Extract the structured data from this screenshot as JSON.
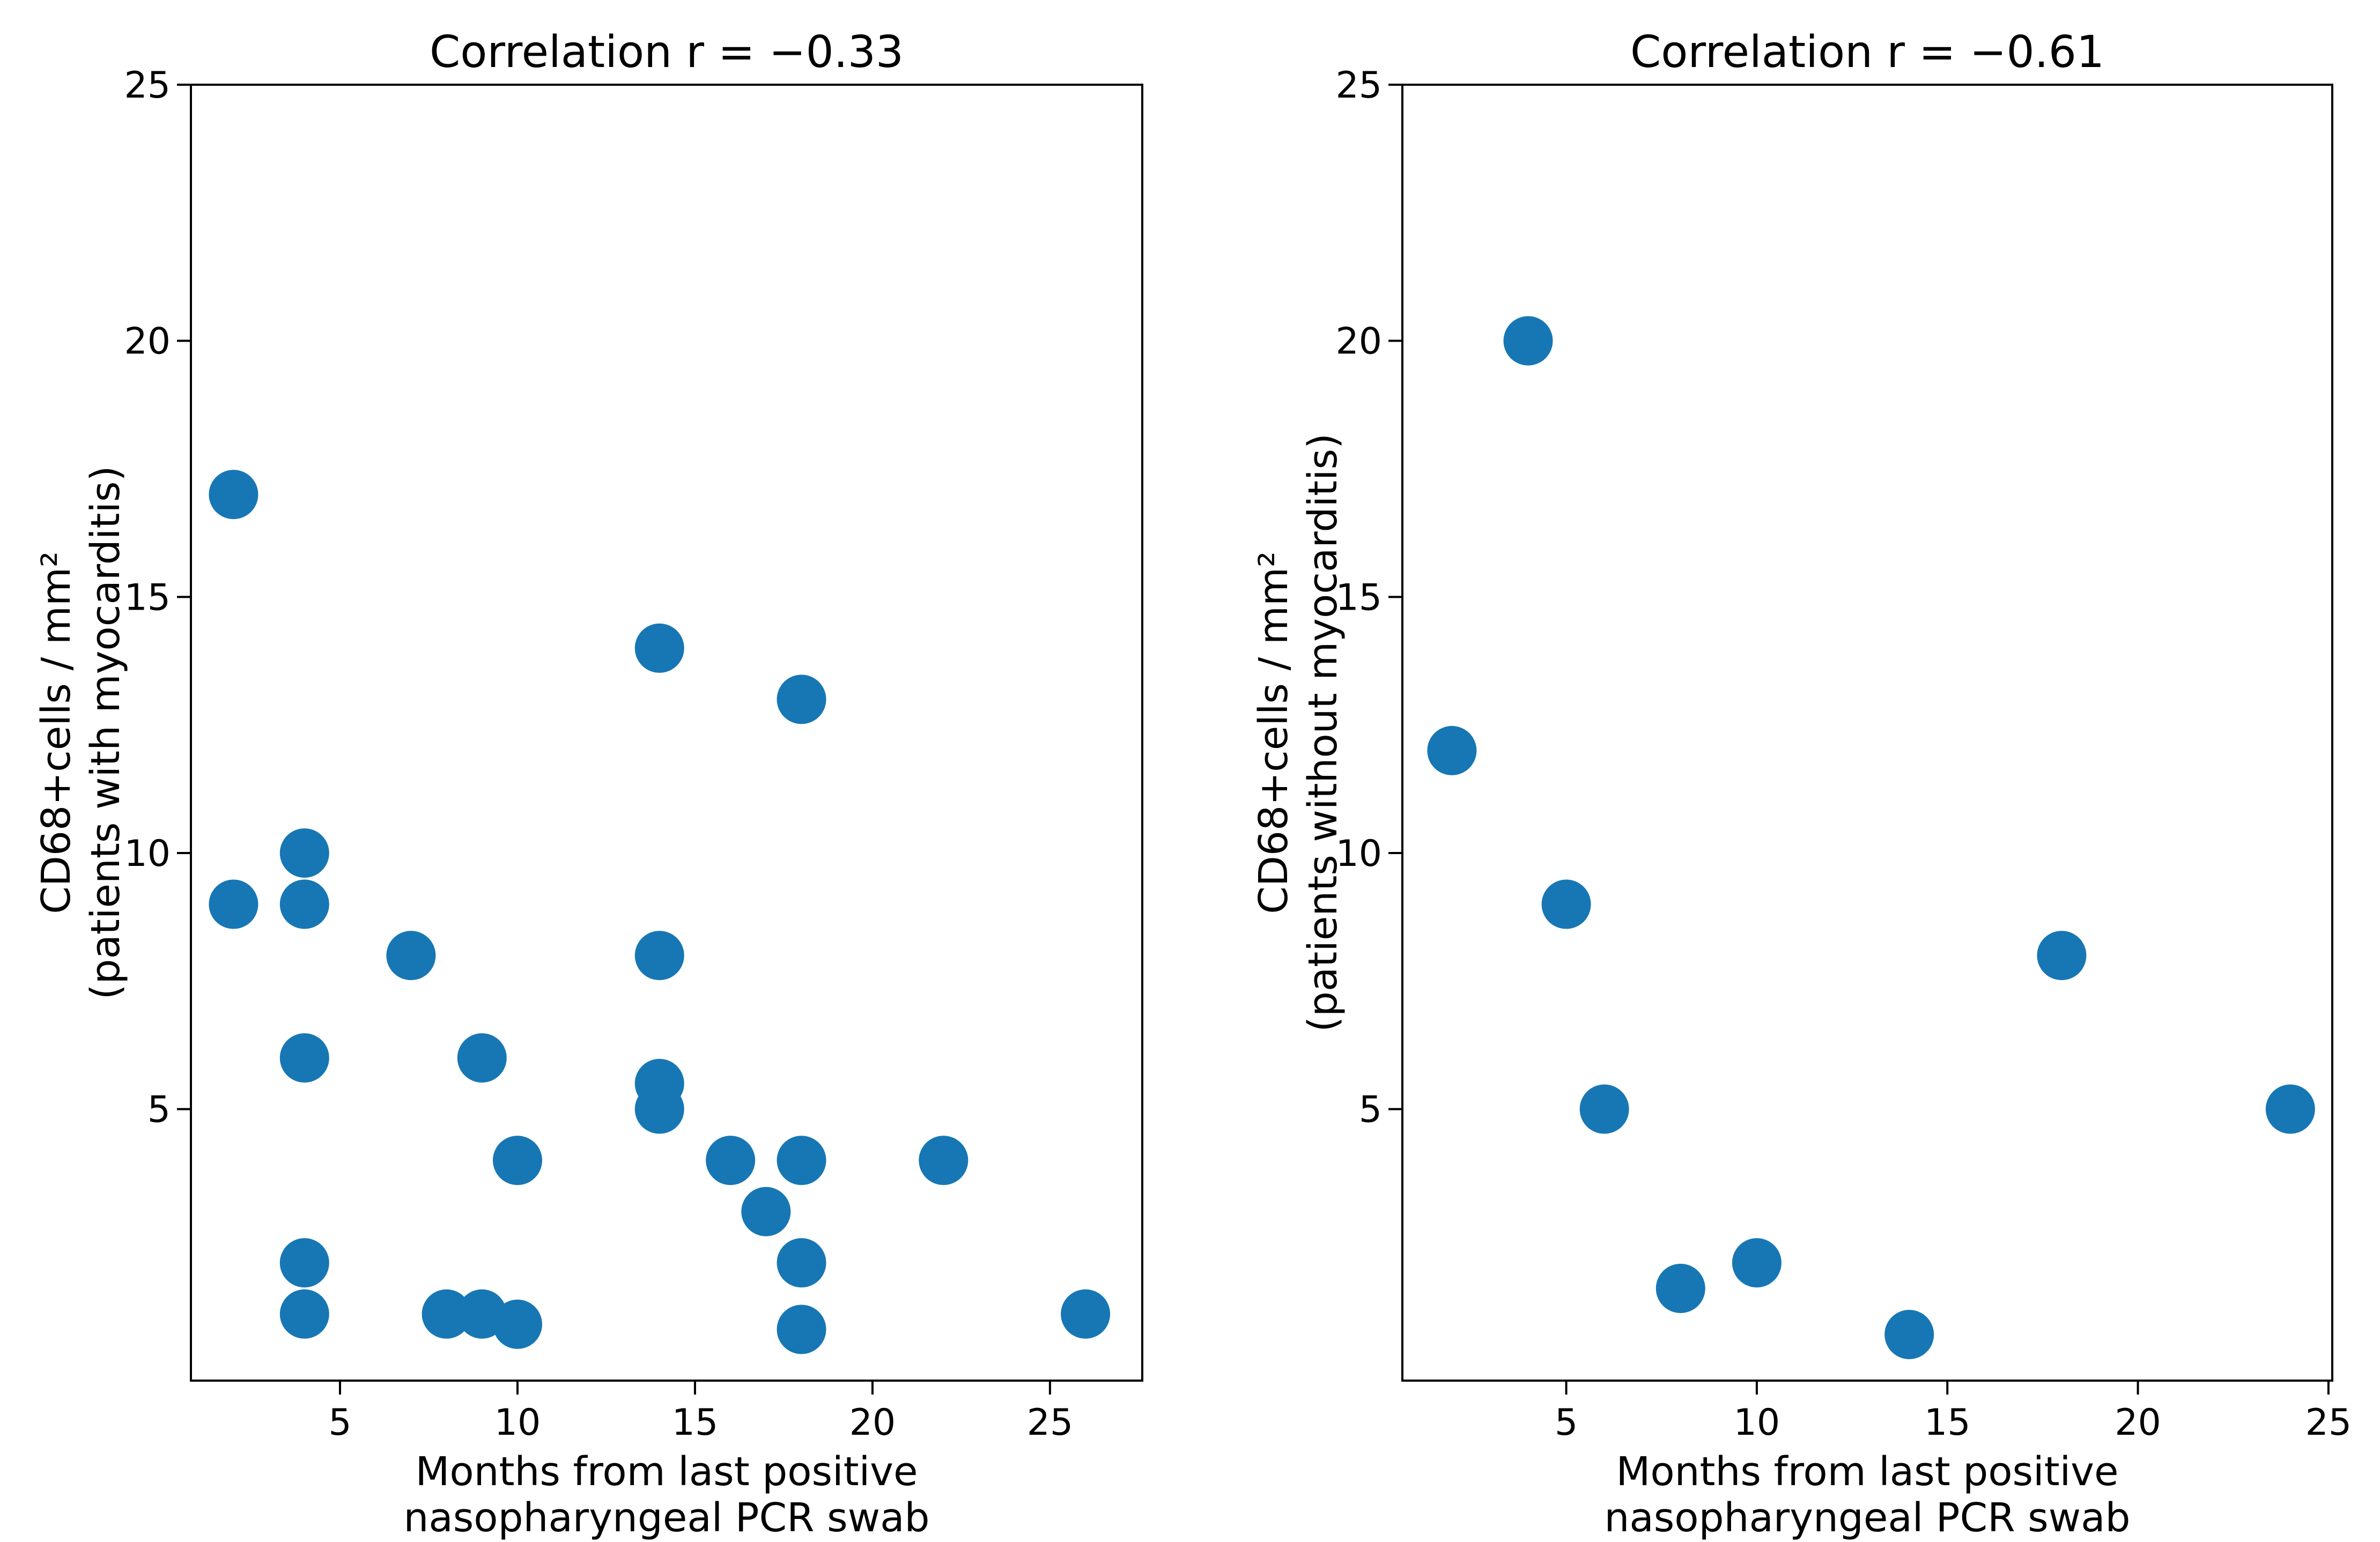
{
  "figure": {
    "background_color": "#ffffff",
    "marker_color": "#1777b4",
    "axis_color": "#000000",
    "text_color": "#000000"
  },
  "chart_data": [
    {
      "type": "scatter",
      "title": "Correlation r = −0.33",
      "xlabel_lines": [
        "Months from last positive",
        "nasopharyngeal PCR swab"
      ],
      "ylabel_lines": [
        "CD68+cells / mm²",
        "(patients with myocarditis)"
      ],
      "xlim": [
        0.8,
        27.6
      ],
      "ylim": [
        -0.3,
        25
      ],
      "xticks": [
        5,
        10,
        15,
        20,
        25
      ],
      "yticks": [
        5,
        10,
        15,
        20,
        25
      ],
      "grid": false,
      "points": [
        [
          2,
          17
        ],
        [
          2,
          9
        ],
        [
          4,
          10
        ],
        [
          4,
          9
        ],
        [
          4,
          6
        ],
        [
          4,
          2
        ],
        [
          4,
          1
        ],
        [
          7,
          8
        ],
        [
          8,
          1
        ],
        [
          9,
          6
        ],
        [
          9,
          1
        ],
        [
          10,
          4
        ],
        [
          10,
          0.8
        ],
        [
          14,
          14
        ],
        [
          14,
          8
        ],
        [
          14,
          5.5
        ],
        [
          14,
          5
        ],
        [
          16,
          4
        ],
        [
          17,
          3
        ],
        [
          18,
          13
        ],
        [
          18,
          4
        ],
        [
          18,
          2
        ],
        [
          18,
          0.7
        ],
        [
          22,
          4
        ],
        [
          26,
          1
        ]
      ]
    },
    {
      "type": "scatter",
      "title": "Correlation r = −0.61",
      "xlabel_lines": [
        "Months from last positive",
        "nasopharyngeal PCR swab"
      ],
      "ylabel_lines": [
        "CD68+cells / mm²",
        "(patients without myocarditis)"
      ],
      "xlim": [
        0.7,
        25.1
      ],
      "ylim": [
        -0.3,
        25
      ],
      "xticks": [
        5,
        10,
        15,
        20,
        25
      ],
      "yticks": [
        5,
        10,
        15,
        20,
        25
      ],
      "grid": false,
      "points": [
        [
          2,
          12
        ],
        [
          4,
          20
        ],
        [
          5,
          9
        ],
        [
          6,
          5
        ],
        [
          8,
          1.5
        ],
        [
          10,
          2
        ],
        [
          14,
          0.6
        ],
        [
          18,
          8
        ],
        [
          24,
          5
        ]
      ]
    }
  ]
}
